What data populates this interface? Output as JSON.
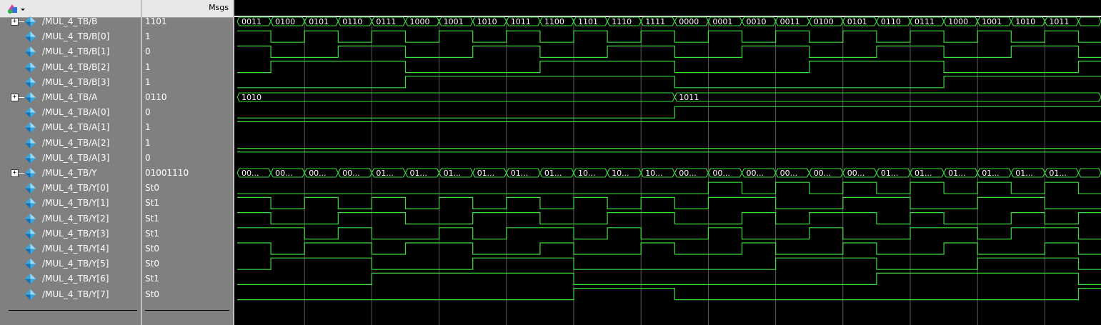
{
  "toolbar": {
    "icon": "wave-tool-dropdown-icon"
  },
  "header": {
    "msgs_label": "Msgs"
  },
  "colors": {
    "wave": "#3ddc3d",
    "bus_text": "#ffffff",
    "grid": "#5a5a5a",
    "panel": "#808080",
    "signal_icon": "#36a9e1"
  },
  "signals": [
    {
      "name": "/MUL_4_TB/B",
      "value": "1101",
      "expandable": true
    },
    {
      "name": "/MUL_4_TB/B[0]",
      "value": "1",
      "expandable": false
    },
    {
      "name": "/MUL_4_TB/B[1]",
      "value": "0",
      "expandable": false
    },
    {
      "name": "/MUL_4_TB/B[2]",
      "value": "1",
      "expandable": false
    },
    {
      "name": "/MUL_4_TB/B[3]",
      "value": "1",
      "expandable": false
    },
    {
      "name": "/MUL_4_TB/A",
      "value": "0110",
      "expandable": true
    },
    {
      "name": "/MUL_4_TB/A[0]",
      "value": "0",
      "expandable": false
    },
    {
      "name": "/MUL_4_TB/A[1]",
      "value": "1",
      "expandable": false
    },
    {
      "name": "/MUL_4_TB/A[2]",
      "value": "1",
      "expandable": false
    },
    {
      "name": "/MUL_4_TB/A[3]",
      "value": "0",
      "expandable": false
    },
    {
      "name": "/MUL_4_TB/Y",
      "value": "01001110",
      "expandable": true
    },
    {
      "name": "/MUL_4_TB/Y[0]",
      "value": "St0",
      "expandable": false
    },
    {
      "name": "/MUL_4_TB/Y[1]",
      "value": "St1",
      "expandable": false
    },
    {
      "name": "/MUL_4_TB/Y[2]",
      "value": "St1",
      "expandable": false
    },
    {
      "name": "/MUL_4_TB/Y[3]",
      "value": "St1",
      "expandable": false
    },
    {
      "name": "/MUL_4_TB/Y[4]",
      "value": "St0",
      "expandable": false
    },
    {
      "name": "/MUL_4_TB/Y[5]",
      "value": "St0",
      "expandable": false
    },
    {
      "name": "/MUL_4_TB/Y[6]",
      "value": "St1",
      "expandable": false
    },
    {
      "name": "/MUL_4_TB/Y[7]",
      "value": "St0",
      "expandable": false
    }
  ],
  "waves": {
    "B_bus": [
      "0011",
      "0100",
      "0101",
      "0110",
      "0111",
      "1000",
      "1001",
      "1010",
      "1011",
      "1100",
      "1101",
      "1110",
      "1111",
      "0000",
      "0001",
      "0010",
      "0011",
      "0100",
      "0101",
      "0110",
      "0111",
      "1000",
      "1001",
      "1010",
      "1011",
      ""
    ],
    "A_bus_labels": [
      "1010",
      "1011"
    ],
    "Y_bus": [
      "00...",
      "00...",
      "00...",
      "00...",
      "01...",
      "01...",
      "01...",
      "01...",
      "01...",
      "01...",
      "10...",
      "10...",
      "10...",
      "00...",
      "00...",
      "00...",
      "00...",
      "00...",
      "00...",
      "01...",
      "01...",
      "01...",
      "01...",
      "01...",
      "01...",
      ""
    ]
  }
}
